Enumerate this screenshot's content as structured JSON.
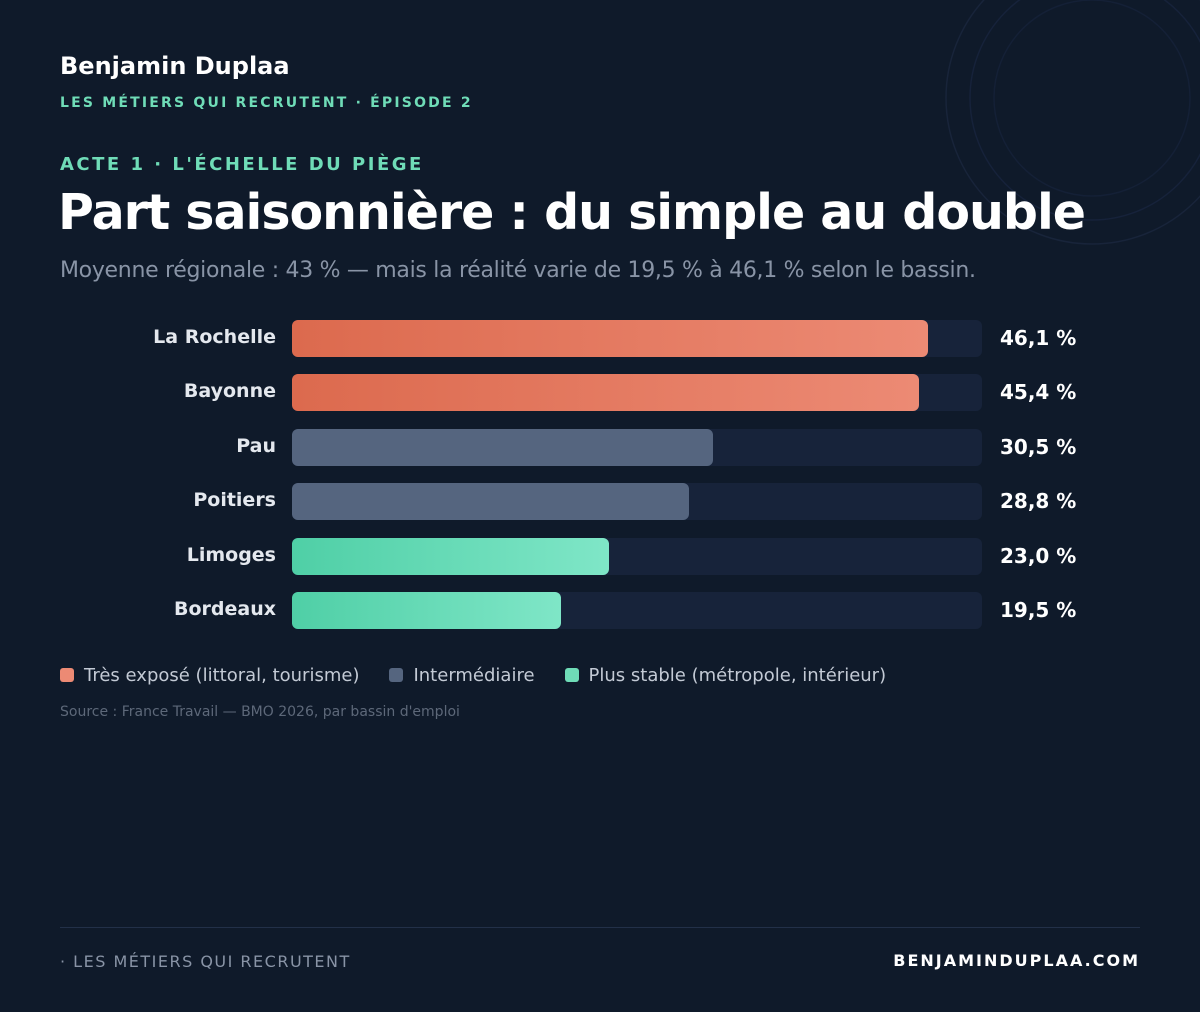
{
  "header": {
    "author": "Benjamin Duplaa",
    "series": "LES MÉTIERS QUI RECRUTENT · ÉPISODE 2",
    "act": "ACTE 1 · L'ÉCHELLE DU PIÈGE"
  },
  "colors": {
    "exposed_start": "#dc6a4e",
    "exposed_end": "#ec8a74",
    "intermediate": "#55657f",
    "stable_start": "#4fcfa6",
    "stable_end": "#7fe6c7",
    "track": "#17233a"
  },
  "chart_data": {
    "type": "bar",
    "orientation": "horizontal",
    "title": "Part saisonnière : du simple au double",
    "subtitle": "Moyenne régionale : 43 % — mais la réalité varie de 19,5 % à 46,1 % selon le bassin.",
    "categories": [
      "La Rochelle",
      "Bayonne",
      "Pau",
      "Poitiers",
      "Limoges",
      "Bordeaux"
    ],
    "values": [
      46.1,
      45.4,
      30.5,
      28.8,
      23.0,
      19.5
    ],
    "value_labels": [
      "46,1 %",
      "45,4 %",
      "30,5 %",
      "28,8 %",
      "23,0 %",
      "19,5 %"
    ],
    "groups": [
      "exposed",
      "exposed",
      "intermediate",
      "intermediate",
      "stable",
      "stable"
    ],
    "xlim": [
      0,
      50
    ],
    "grid": false,
    "legend": [
      {
        "group": "exposed",
        "label": "Très exposé (littoral, tourisme)",
        "color": "#ec8a74"
      },
      {
        "group": "intermediate",
        "label": "Intermédiaire",
        "color": "#55657f"
      },
      {
        "group": "stable",
        "label": "Plus stable (métropole, intérieur)",
        "color": "#6fdcb7"
      }
    ],
    "legend_position": "bottom-left",
    "source": "Source : France Travail — BMO 2026, par bassin d'emploi"
  },
  "footer": {
    "left": "· LES MÉTIERS QUI RECRUTENT",
    "right": "BENJAMINDUPLAA.COM"
  }
}
